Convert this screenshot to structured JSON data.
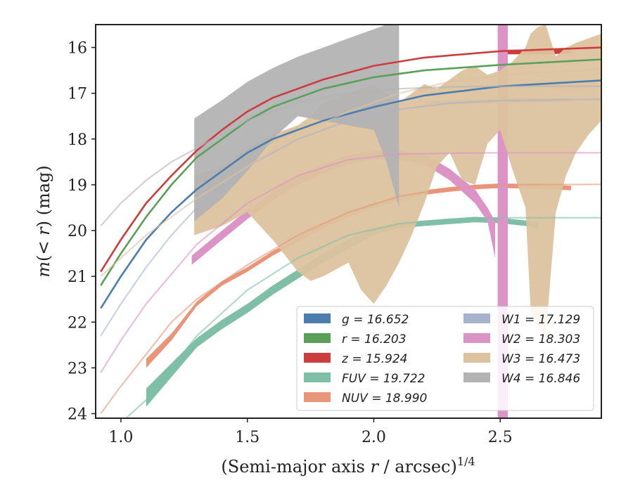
{
  "chart_data": {
    "type": "line",
    "xlabel": "(Semi-major axis r / arcsec)^1/4",
    "ylabel": "m(< r) (mag)",
    "xlim": [
      0.9,
      2.9
    ],
    "ylim": [
      24.1,
      15.5
    ],
    "y_inverted": true,
    "x_ticks": [
      1.0,
      1.5,
      2.0,
      2.5
    ],
    "x_tick_labels": [
      "1.0",
      "1.5",
      "2.0",
      "2.5"
    ],
    "y_ticks": [
      16,
      17,
      18,
      19,
      20,
      21,
      22,
      23,
      24
    ],
    "y_tick_labels": [
      "16",
      "17",
      "18",
      "19",
      "20",
      "21",
      "22",
      "23",
      "24"
    ],
    "grid": false,
    "legend_position": "lower-right",
    "series": [
      {
        "name": "g = 16.652",
        "key": "g",
        "color": "#4c7dae",
        "model_x": [
          0.92,
          1.0,
          1.1,
          1.2,
          1.3,
          1.4,
          1.5,
          1.6,
          1.8,
          2.0,
          2.2,
          2.5,
          2.9
        ],
        "model_y": [
          21.7,
          21.0,
          20.2,
          19.6,
          19.1,
          18.7,
          18.3,
          18.0,
          17.6,
          17.3,
          17.05,
          16.85,
          16.72
        ],
        "band_x": [
          1.29,
          1.4,
          1.5,
          1.6,
          1.7
        ],
        "band_lo": [
          19.05,
          18.65,
          18.28,
          17.98,
          17.72
        ],
        "band_hi": [
          19.15,
          18.75,
          18.38,
          18.08,
          17.82
        ]
      },
      {
        "name": "r = 16.203",
        "key": "r",
        "color": "#5aa05a",
        "model_x": [
          0.92,
          1.0,
          1.1,
          1.2,
          1.3,
          1.4,
          1.5,
          1.6,
          1.8,
          2.0,
          2.2,
          2.5,
          2.9
        ],
        "model_y": [
          21.2,
          20.5,
          19.7,
          19.0,
          18.4,
          18.0,
          17.6,
          17.3,
          16.9,
          16.65,
          16.5,
          16.38,
          16.26
        ],
        "band_x": [],
        "band_lo": [],
        "band_hi": []
      },
      {
        "name": "z = 15.924",
        "key": "z",
        "color": "#cc3d3d",
        "model_x": [
          0.92,
          1.0,
          1.1,
          1.2,
          1.3,
          1.4,
          1.5,
          1.6,
          1.8,
          2.0,
          2.2,
          2.5,
          2.9
        ],
        "model_y": [
          20.9,
          20.2,
          19.4,
          18.8,
          18.25,
          17.8,
          17.4,
          17.1,
          16.7,
          16.4,
          16.22,
          16.08,
          16.0
        ],
        "band_x": [
          2.5,
          2.6,
          2.7,
          2.78
        ],
        "band_lo": [
          16.05,
          16.05,
          16.05,
          16.02
        ],
        "band_hi": [
          16.15,
          16.15,
          16.15,
          16.12
        ]
      },
      {
        "name": "FUV = 19.722",
        "key": "FUV",
        "color": "#7fbfa8",
        "model_x": [
          1.0,
          1.1,
          1.2,
          1.3,
          1.5,
          1.7,
          1.9,
          2.1,
          2.3,
          2.5,
          2.7,
          2.9
        ],
        "model_y": [
          24.2,
          23.7,
          23.0,
          22.3,
          21.3,
          20.6,
          20.1,
          19.85,
          19.75,
          19.72,
          19.72,
          19.72
        ],
        "band_x": [
          1.1,
          1.2,
          1.3,
          1.4,
          1.5,
          1.6,
          1.7,
          1.8,
          1.9,
          2.0,
          2.1,
          2.2,
          2.3,
          2.4,
          2.5,
          2.6,
          2.65
        ],
        "band_lo": [
          23.45,
          22.9,
          22.35,
          21.95,
          21.6,
          21.2,
          20.85,
          20.5,
          20.2,
          19.95,
          19.82,
          19.78,
          19.74,
          19.7,
          19.72,
          19.78,
          19.82
        ],
        "band_hi": [
          23.85,
          23.2,
          22.55,
          22.15,
          21.8,
          21.4,
          21.05,
          20.7,
          20.4,
          20.1,
          19.95,
          19.9,
          19.86,
          19.82,
          19.84,
          19.9,
          19.96
        ]
      },
      {
        "name": "NUV = 18.990",
        "key": "NUV",
        "color": "#e9957a",
        "model_x": [
          0.92,
          1.0,
          1.1,
          1.2,
          1.3,
          1.5,
          1.7,
          1.9,
          2.1,
          2.3,
          2.5,
          2.9
        ],
        "model_y": [
          24.0,
          23.4,
          22.7,
          22.0,
          21.5,
          20.75,
          20.1,
          19.6,
          19.25,
          19.08,
          19.0,
          18.99
        ],
        "band_x": [
          1.1,
          1.2,
          1.3,
          1.4,
          1.5,
          1.6,
          1.7,
          1.8,
          1.9,
          2.0,
          2.1,
          2.2,
          2.3,
          2.4,
          2.5,
          2.6,
          2.7,
          2.78
        ],
        "band_lo": [
          22.8,
          22.25,
          21.55,
          21.1,
          20.8,
          20.45,
          20.15,
          19.85,
          19.6,
          19.4,
          19.25,
          19.12,
          19.05,
          19.0,
          18.97,
          18.98,
          19.0,
          19.02
        ],
        "band_hi": [
          23.0,
          22.4,
          21.65,
          21.2,
          20.9,
          20.55,
          20.25,
          19.95,
          19.7,
          19.5,
          19.35,
          19.22,
          19.15,
          19.1,
          19.07,
          19.08,
          19.1,
          19.12
        ]
      },
      {
        "name": "W1 = 17.129",
        "key": "W1",
        "color": "#a7b2cc",
        "model_x": [
          0.92,
          1.0,
          1.1,
          1.2,
          1.3,
          1.5,
          1.7,
          1.9,
          2.1,
          2.3,
          2.5,
          2.9
        ],
        "model_y": [
          22.3,
          21.6,
          20.8,
          20.1,
          19.5,
          18.6,
          18.0,
          17.6,
          17.35,
          17.22,
          17.16,
          17.13
        ],
        "band_x": [
          2.2,
          2.4,
          2.6,
          2.78
        ],
        "band_lo": [
          17.17,
          17.14,
          17.12,
          17.11
        ],
        "band_hi": [
          17.25,
          17.22,
          17.2,
          17.19
        ]
      },
      {
        "name": "W2 = 18.303",
        "key": "W2",
        "color": "#dc93c5",
        "model_x": [
          0.92,
          1.0,
          1.1,
          1.3,
          1.5,
          1.7,
          1.9,
          2.1,
          2.3,
          2.5,
          2.9
        ],
        "model_y": [
          23.1,
          22.4,
          21.6,
          20.3,
          19.4,
          18.8,
          18.45,
          18.33,
          18.31,
          18.3,
          18.3
        ],
        "band_x": [
          1.28,
          1.4,
          1.5,
          1.6,
          1.7,
          1.8,
          1.9,
          2.0,
          2.1,
          2.2,
          2.3,
          2.4,
          2.45,
          2.48
        ],
        "band_lo": [
          20.55,
          20.0,
          19.55,
          19.15,
          18.8,
          18.55,
          18.35,
          18.27,
          18.25,
          18.33,
          18.65,
          19.1,
          19.5,
          19.8
        ],
        "band_hi": [
          20.75,
          20.2,
          19.75,
          19.35,
          19.0,
          18.75,
          18.55,
          18.45,
          18.45,
          18.55,
          18.9,
          19.4,
          19.8,
          20.6
        ],
        "spike_x": [
          2.49,
          2.53
        ],
        "spike_ylim": [
          15.5,
          24.1
        ]
      },
      {
        "name": "W3 = 16.473",
        "key": "W3",
        "color": "#dcc29e",
        "model_x": [
          0.92,
          1.0,
          1.1,
          1.3,
          1.5,
          1.7,
          1.9,
          2.1,
          2.3,
          2.5,
          2.9
        ],
        "model_y": [
          21.0,
          20.6,
          20.1,
          19.3,
          18.6,
          17.9,
          17.4,
          17.0,
          16.75,
          16.6,
          16.47
        ],
        "band_x": [
          1.29,
          1.4,
          1.5,
          1.6,
          1.7,
          1.75,
          1.8,
          1.9,
          1.95,
          2.0,
          2.05,
          2.1,
          2.15,
          2.2,
          2.25,
          2.3,
          2.35,
          2.4,
          2.45,
          2.5,
          2.55,
          2.6,
          2.62,
          2.65,
          2.68,
          2.72,
          2.76,
          2.8,
          2.85,
          2.9
        ],
        "band_lo": [
          20.1,
          19.9,
          19.6,
          20.2,
          20.9,
          21.1,
          21.0,
          20.7,
          21.3,
          21.6,
          21.2,
          20.7,
          20.1,
          19.4,
          18.6,
          18.3,
          18.9,
          19.0,
          18.1,
          17.8,
          18.7,
          19.5,
          21.7,
          22.1,
          22.3,
          19.6,
          18.8,
          18.3,
          17.9,
          17.6
        ],
        "band_hi": [
          18.8,
          18.6,
          18.2,
          17.9,
          17.7,
          17.5,
          17.2,
          17.0,
          16.9,
          16.8,
          17.0,
          17.2,
          17.0,
          16.8,
          16.9,
          16.7,
          16.5,
          16.4,
          16.6,
          16.5,
          16.3,
          16.0,
          15.7,
          15.55,
          15.5,
          16.2,
          16.0,
          15.9,
          15.8,
          15.7
        ]
      },
      {
        "name": "W4 = 16.846",
        "key": "W4",
        "color": "#b3b3b3",
        "model_x": [
          0.92,
          1.0,
          1.1,
          1.2,
          1.3,
          1.5,
          1.7,
          1.9,
          2.1,
          2.3,
          2.5,
          2.9
        ],
        "model_y": [
          19.9,
          19.4,
          18.9,
          18.5,
          18.2,
          17.6,
          17.2,
          17.0,
          16.9,
          16.86,
          16.85,
          16.846
        ],
        "band_x": [
          1.29,
          1.4,
          1.5,
          1.6,
          1.7,
          1.8,
          1.9,
          2.0,
          2.05,
          2.1
        ],
        "band_lo": [
          19.8,
          19.3,
          18.7,
          18.0,
          17.5,
          17.6,
          17.7,
          17.8,
          18.5,
          19.5
        ],
        "band_hi": [
          17.55,
          17.15,
          16.75,
          16.45,
          16.2,
          16.0,
          15.8,
          15.6,
          15.5,
          15.5
        ]
      }
    ]
  }
}
